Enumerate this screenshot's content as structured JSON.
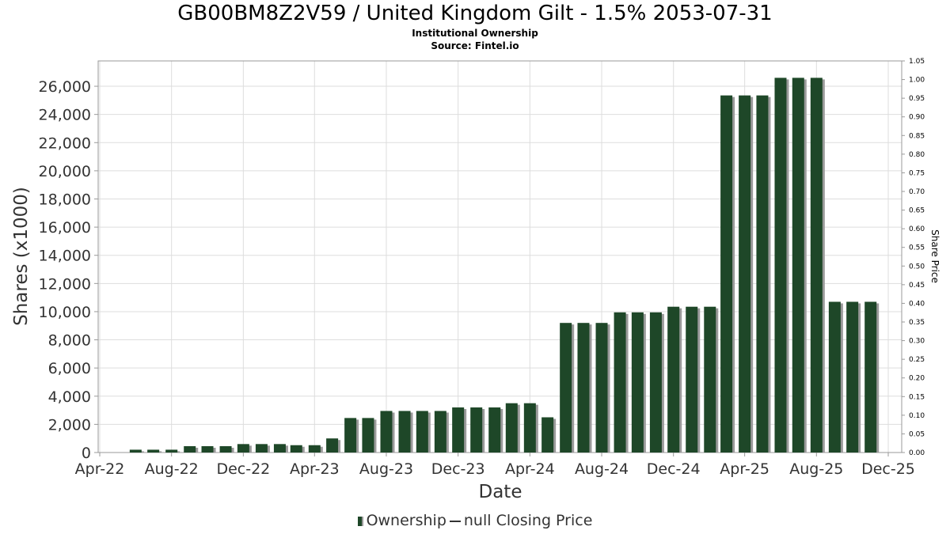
{
  "title": "GB00BM8Z2V59 / United Kingdom Gilt - 1.5% 2053-07-31",
  "subtitle1": "Institutional Ownership",
  "subtitle2": "Source: Fintel.io",
  "legend": {
    "ownership": "Ownership",
    "price": "null Closing Price"
  },
  "colors": {
    "bar": "#1e4728",
    "bar_shadow": "#9a9a9a",
    "grid": "#dddddd"
  },
  "chart_data": {
    "type": "bar",
    "title": "GB00BM8Z2V59 / United Kingdom Gilt - 1.5% 2053-07-31",
    "xlabel": "Date",
    "ylabel": "Shares (x1000)",
    "y2label": "Share Price",
    "ylim": [
      0,
      27800
    ],
    "y2lim": [
      0,
      1.05
    ],
    "grid": true,
    "legend_position": "bottom",
    "x_ticks": [
      "Apr-22",
      "Aug-22",
      "Dec-22",
      "Apr-23",
      "Aug-23",
      "Dec-23",
      "Apr-24",
      "Aug-24",
      "Dec-24",
      "Apr-25",
      "Aug-25",
      "Dec-25"
    ],
    "y_ticks": [
      "0",
      "2,000",
      "4,000",
      "6,000",
      "8,000",
      "10,000",
      "12,000",
      "14,000",
      "16,000",
      "18,000",
      "20,000",
      "22,000",
      "24,000",
      "26,000"
    ],
    "y2_ticks": [
      "0.00",
      "0.05",
      "0.10",
      "0.15",
      "0.20",
      "0.25",
      "0.30",
      "0.35",
      "0.40",
      "0.45",
      "0.50",
      "0.55",
      "0.60",
      "0.65",
      "0.70",
      "0.75",
      "0.80",
      "0.85",
      "0.90",
      "0.95",
      "1.00",
      "1.05"
    ],
    "series": [
      {
        "name": "Ownership",
        "x": [
          "2022-06",
          "2022-07",
          "2022-08",
          "2022-09",
          "2022-10",
          "2022-11",
          "2022-12",
          "2023-01",
          "2023-02",
          "2023-03",
          "2023-04",
          "2023-05",
          "2023-06",
          "2023-07",
          "2023-08",
          "2023-09",
          "2023-10",
          "2023-11",
          "2023-12",
          "2024-01",
          "2024-02",
          "2024-03",
          "2024-04",
          "2024-05",
          "2024-06",
          "2024-07",
          "2024-08",
          "2024-09",
          "2024-10",
          "2024-11",
          "2024-12",
          "2025-01",
          "2025-02",
          "2025-03",
          "2025-04",
          "2025-05",
          "2025-06",
          "2025-07",
          "2025-08",
          "2025-09",
          "2025-10",
          "2025-11"
        ],
        "values": [
          200,
          200,
          200,
          450,
          450,
          450,
          600,
          600,
          600,
          520,
          520,
          1000,
          2450,
          2450,
          2950,
          2950,
          2950,
          2950,
          3200,
          3200,
          3200,
          3500,
          3500,
          2500,
          9200,
          9200,
          9200,
          9950,
          9950,
          9950,
          10350,
          10350,
          10350,
          25350,
          25350,
          25350,
          26600,
          26600,
          26600,
          10700,
          10700,
          10700
        ]
      }
    ]
  }
}
